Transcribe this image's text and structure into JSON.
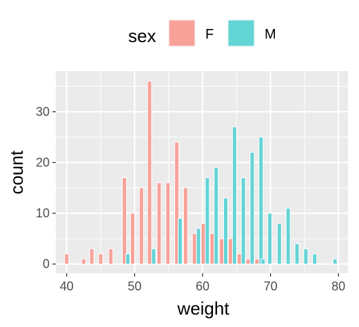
{
  "chart_data": {
    "type": "bar",
    "xlabel": "weight",
    "ylabel": "count",
    "xlim": [
      38.4,
      81.4
    ],
    "ylim": [
      -1.8,
      38
    ],
    "xticks": [
      40,
      50,
      60,
      70,
      80
    ],
    "yticks": [
      0,
      10,
      20,
      30
    ],
    "grid": true,
    "legend": {
      "title": "sex",
      "position": "top"
    },
    "bar_width": 0.6,
    "series": [
      {
        "name": "F",
        "color": "#F8A199",
        "points": [
          {
            "x": 40,
            "y": 2
          },
          {
            "x": 42.5,
            "y": 1
          },
          {
            "x": 43.7,
            "y": 3
          },
          {
            "x": 45,
            "y": 2
          },
          {
            "x": 46.5,
            "y": 3
          },
          {
            "x": 48.5,
            "y": 17
          },
          {
            "x": 49.7,
            "y": 10
          },
          {
            "x": 51,
            "y": 15
          },
          {
            "x": 52.2,
            "y": 36
          },
          {
            "x": 53.6,
            "y": 16
          },
          {
            "x": 54.9,
            "y": 16
          },
          {
            "x": 56.2,
            "y": 24
          },
          {
            "x": 57.5,
            "y": 15
          },
          {
            "x": 58.8,
            "y": 6
          },
          {
            "x": 60.1,
            "y": 8
          },
          {
            "x": 61.4,
            "y": 6
          },
          {
            "x": 62.8,
            "y": 5
          },
          {
            "x": 64.1,
            "y": 5
          },
          {
            "x": 65.4,
            "y": 2
          },
          {
            "x": 66.7,
            "y": 1
          },
          {
            "x": 68,
            "y": 1
          }
        ]
      },
      {
        "name": "M",
        "color": "#62D4D6",
        "points": [
          {
            "x": 49,
            "y": 2
          },
          {
            "x": 52.8,
            "y": 3
          },
          {
            "x": 56.7,
            "y": 9
          },
          {
            "x": 59.4,
            "y": 7
          },
          {
            "x": 60.7,
            "y": 17
          },
          {
            "x": 62,
            "y": 19
          },
          {
            "x": 63.4,
            "y": 13
          },
          {
            "x": 64.7,
            "y": 27
          },
          {
            "x": 66,
            "y": 17
          },
          {
            "x": 67.3,
            "y": 22
          },
          {
            "x": 68.6,
            "y": 25
          },
          {
            "x": 68.9,
            "y": 1
          },
          {
            "x": 69.9,
            "y": 10
          },
          {
            "x": 71.3,
            "y": 8
          },
          {
            "x": 72.6,
            "y": 11
          },
          {
            "x": 73.9,
            "y": 4
          },
          {
            "x": 75.2,
            "y": 3
          },
          {
            "x": 76.5,
            "y": 2
          },
          {
            "x": 79.5,
            "y": 1
          }
        ]
      }
    ]
  }
}
